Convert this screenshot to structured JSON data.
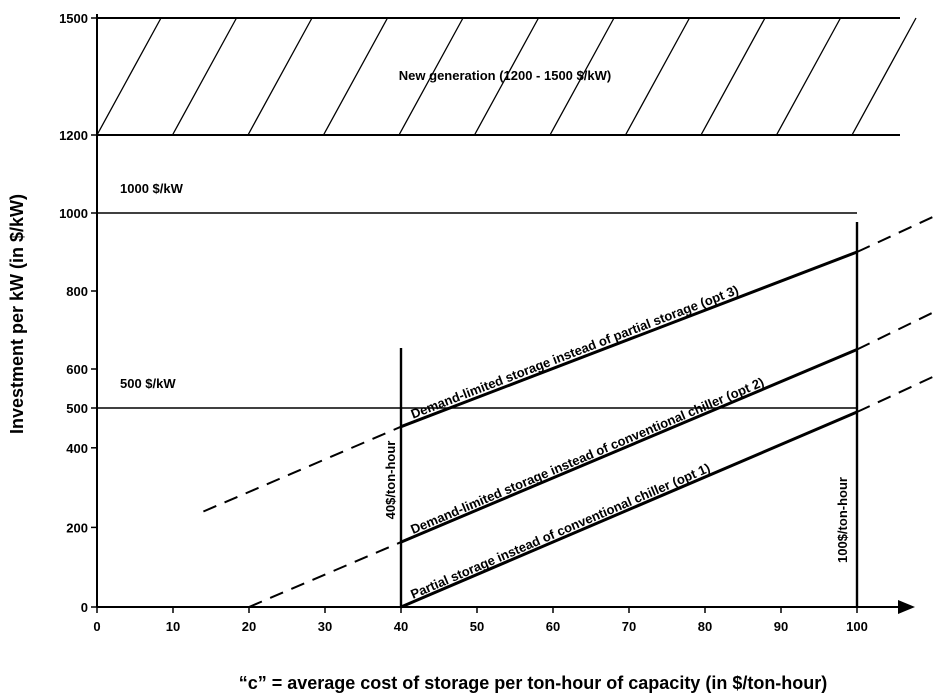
{
  "chart_data": {
    "type": "line",
    "xlabel": "“c” = average cost of storage per ton-hour of capacity (in $/ton-hour)",
    "ylabel": "Investment per kW (in $/kW)",
    "xlim": [
      0,
      100
    ],
    "ylim": [
      0,
      1500
    ],
    "xticks": [
      "0",
      "10",
      "20",
      "30",
      "40",
      "50",
      "60",
      "70",
      "80",
      "90",
      "100"
    ],
    "yticks": [
      {
        "value": 0,
        "label": "0"
      },
      {
        "value": 200,
        "label": "200"
      },
      {
        "value": 400,
        "label": "400"
      },
      {
        "value": 500,
        "label": "500"
      },
      {
        "value": 600,
        "label": "600"
      },
      {
        "value": 800,
        "label": "800"
      },
      {
        "value": 1000,
        "label": "1000"
      },
      {
        "value": 1200,
        "label": "1200"
      },
      {
        "value": 1500,
        "label": "1500"
      }
    ],
    "band": {
      "label": "New generation (1200 - 1500 $/kW)",
      "y_low": 1200,
      "y_high": 1500
    },
    "reference_lines": [
      {
        "label": "1000 $/kW",
        "value": 1000
      },
      {
        "label": "500 $/kW",
        "value": 500
      }
    ],
    "vertical_lines": [
      {
        "label": "40$/ton-hour",
        "x": 40
      },
      {
        "label": "100$/ton-hour",
        "x": 100
      }
    ],
    "series": [
      {
        "name": "Partial storage instead of conventional chiller (opt 1)",
        "solid": [
          [
            40,
            0
          ],
          [
            100,
            490
          ]
        ],
        "dashed": [
          [
            20,
            0
          ],
          [
            40,
            163
          ],
          [
            100,
            490
          ],
          [
            110,
            580
          ]
        ]
      },
      {
        "name": "Demand-limited storage instead of conventional chiller (opt 2)",
        "solid": [
          [
            40,
            163
          ],
          [
            100,
            650
          ]
        ],
        "dashed": [
          [
            14,
            240
          ],
          [
            40,
            453
          ],
          [
            100,
            650
          ],
          [
            110,
            745
          ]
        ]
      },
      {
        "name": "Demand-limited storage instead of partial storage (opt 3)",
        "solid": [
          [
            40,
            453
          ],
          [
            100,
            900
          ]
        ],
        "dashed": [
          [
            100,
            900
          ],
          [
            110,
            990
          ]
        ]
      }
    ]
  }
}
